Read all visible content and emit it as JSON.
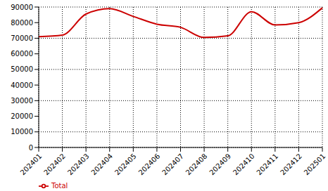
{
  "chart_data": {
    "type": "line",
    "categories": [
      "202401",
      "202402",
      "202403",
      "202404",
      "202405",
      "202406",
      "202407",
      "202408",
      "202409",
      "202410",
      "202411",
      "202412",
      "202501"
    ],
    "series": [
      {
        "name": "Total",
        "color": "#cc0000",
        "values": [
          71000,
          72000,
          85500,
          89000,
          84000,
          79000,
          77000,
          70500,
          71500,
          87000,
          78500,
          80000,
          89500
        ]
      }
    ],
    "ylim": [
      0,
      90000
    ],
    "yticks": [
      0,
      10000,
      20000,
      30000,
      40000,
      50000,
      60000,
      70000,
      80000,
      90000
    ],
    "grid": true,
    "legend": "lower left"
  }
}
